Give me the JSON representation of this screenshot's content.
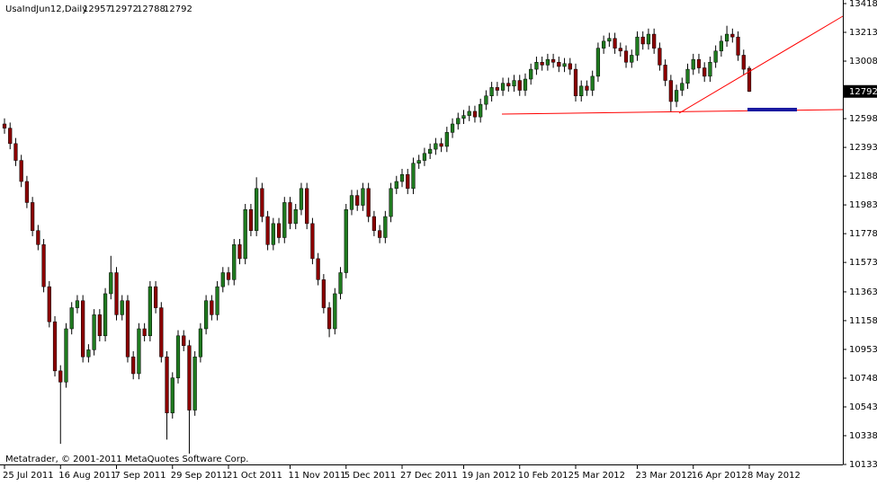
{
  "chart_data": {
    "type": "candlestick",
    "symbol": "UsaIndJun12,Daily",
    "watermark": "Metatrader, © 2001-2011 MetaQuotes Software Corp.",
    "up_color": "#1f7a1f",
    "down_color": "#8b0000",
    "wick_color": "#000000",
    "open": [
      12560,
      12530,
      12420,
      12300,
      12150,
      12000,
      11800,
      11700,
      11400,
      11150,
      10800,
      10720,
      11100,
      11250,
      11300,
      10900,
      10950,
      11200,
      11050,
      11350,
      11500,
      11200,
      11300,
      10900,
      10780,
      11100,
      11050,
      11400,
      11250,
      10900,
      10500,
      10750,
      11050,
      10980,
      10520,
      10900,
      11100,
      11300,
      11200,
      11400,
      11500,
      11450,
      11700,
      11600,
      11950,
      11800,
      12100,
      11900,
      11700,
      11850,
      11750,
      12000,
      11850,
      11950,
      12100,
      11850,
      11600,
      11450,
      11250,
      11100,
      11350,
      11500,
      11950,
      12050,
      11980,
      12100,
      11900,
      11800,
      11750,
      11900,
      12100,
      12150,
      12200,
      12100,
      12280,
      12300,
      12350,
      12380,
      12420,
      12400,
      12500,
      12560,
      12600,
      12620,
      12650,
      12610,
      12700,
      12760,
      12820,
      12800,
      12850,
      12830,
      12870,
      12800,
      12880,
      12950,
      13000,
      12980,
      13020,
      13000,
      12970,
      12990,
      12950,
      12760,
      12830,
      12800,
      12900,
      13100,
      13150,
      13170,
      13100,
      13080,
      13000,
      13050,
      13180,
      13130,
      13200,
      13100,
      12980,
      12870,
      12720,
      12800,
      12850,
      12950,
      13020,
      12960,
      12900,
      13000,
      13080,
      13150,
      13200,
      13180,
      13050,
      12957
    ],
    "high": [
      12600,
      12570,
      12460,
      12340,
      12190,
      12040,
      11840,
      11740,
      11440,
      11190,
      10840,
      11140,
      11290,
      11340,
      11340,
      10990,
      11240,
      11240,
      11390,
      11620,
      11540,
      11340,
      11340,
      10940,
      11140,
      11140,
      11440,
      11440,
      11290,
      10940,
      10790,
      11090,
      11090,
      11020,
      10940,
      11140,
      11340,
      11340,
      11440,
      11540,
      11540,
      11740,
      11740,
      11990,
      11990,
      12180,
      12140,
      11940,
      11890,
      11890,
      12040,
      12040,
      11990,
      12140,
      12140,
      11890,
      11640,
      11490,
      11290,
      11390,
      11540,
      11990,
      12090,
      12090,
      12140,
      12140,
      11940,
      11840,
      11940,
      12140,
      12190,
      12240,
      12240,
      12320,
      12340,
      12390,
      12420,
      12460,
      12460,
      12540,
      12600,
      12640,
      12660,
      12690,
      12690,
      12740,
      12800,
      12860,
      12860,
      12890,
      12890,
      12910,
      12910,
      12920,
      12990,
      13040,
      13040,
      13060,
      13060,
      13040,
      13030,
      13030,
      12990,
      12870,
      12870,
      12940,
      13140,
      13190,
      13210,
      13210,
      13140,
      13120,
      13090,
      13220,
      13220,
      13240,
      13240,
      13140,
      13020,
      12910,
      12840,
      12890,
      12990,
      13060,
      13060,
      13000,
      13040,
      13120,
      13190,
      13260,
      13240,
      13220,
      13090,
      12972
    ],
    "low": [
      12490,
      12380,
      12260,
      12110,
      11960,
      11760,
      11660,
      11360,
      11110,
      10760,
      10280,
      10680,
      11060,
      11210,
      10860,
      10860,
      10910,
      11010,
      11010,
      11310,
      11160,
      11160,
      10860,
      10740,
      10740,
      11010,
      11010,
      11210,
      10860,
      10310,
      10460,
      10710,
      10940,
      10210,
      10480,
      10860,
      11060,
      11160,
      11160,
      11360,
      11410,
      11410,
      11560,
      11560,
      11760,
      11760,
      11860,
      11660,
      11660,
      11710,
      11710,
      11810,
      11810,
      11910,
      11810,
      11560,
      11410,
      11210,
      11040,
      11060,
      11310,
      11460,
      11910,
      11940,
      11940,
      11860,
      11760,
      11710,
      11710,
      11860,
      12060,
      12110,
      12060,
      12060,
      12240,
      12260,
      12310,
      12340,
      12360,
      12360,
      12460,
      12520,
      12560,
      12580,
      12570,
      12570,
      12660,
      12720,
      12760,
      12760,
      12790,
      12790,
      12760,
      12760,
      12840,
      12910,
      12940,
      12940,
      12960,
      12930,
      12930,
      12910,
      12720,
      12720,
      12760,
      12760,
      12860,
      13060,
      13110,
      13060,
      13040,
      12960,
      12960,
      13010,
      13090,
      13090,
      13060,
      12940,
      12830,
      12650,
      12680,
      12760,
      12810,
      12910,
      12920,
      12860,
      12860,
      12960,
      13040,
      13110,
      13140,
      13010,
      12910,
      12788
    ],
    "close": [
      12530,
      12420,
      12300,
      12150,
      12000,
      11800,
      11700,
      11400,
      11150,
      10800,
      10720,
      11100,
      11250,
      11300,
      10900,
      10950,
      11200,
      11050,
      11350,
      11500,
      11200,
      11300,
      10900,
      10780,
      11100,
      11050,
      11400,
      11250,
      10900,
      10500,
      10750,
      11050,
      10980,
      10520,
      10900,
      11100,
      11300,
      11200,
      11400,
      11500,
      11450,
      11700,
      11600,
      11950,
      11800,
      12100,
      11900,
      11700,
      11850,
      11750,
      12000,
      11850,
      11950,
      12100,
      11850,
      11600,
      11450,
      11250,
      11100,
      11350,
      11500,
      11950,
      12050,
      11980,
      12100,
      11900,
      11800,
      11750,
      11900,
      12100,
      12150,
      12200,
      12100,
      12280,
      12300,
      12350,
      12380,
      12420,
      12400,
      12500,
      12560,
      12600,
      12620,
      12650,
      12610,
      12700,
      12760,
      12820,
      12800,
      12850,
      12830,
      12870,
      12800,
      12880,
      12950,
      13000,
      12980,
      13020,
      13000,
      12970,
      12990,
      12950,
      12760,
      12830,
      12800,
      12900,
      13100,
      13150,
      13170,
      13100,
      13080,
      13000,
      13050,
      13180,
      13130,
      13200,
      13100,
      12980,
      12870,
      12720,
      12800,
      12850,
      12950,
      13020,
      12960,
      12900,
      13000,
      13080,
      13150,
      13200,
      13180,
      13050,
      12950,
      12792
    ],
    "ylim": [
      10133,
      13418
    ],
    "yticks": [
      13418,
      13213,
      13008,
      12598,
      12393,
      12188,
      11983,
      11778,
      11573,
      11363,
      11158,
      10953,
      10748,
      10543,
      10338,
      10133
    ],
    "xticks": [
      {
        "value": 0,
        "label": "25 Jul 2011"
      },
      {
        "value": 10,
        "label": "16 Aug 2011"
      },
      {
        "value": 20,
        "label": "7 Sep 2011"
      },
      {
        "value": 30,
        "label": "29 Sep 2011"
      },
      {
        "value": 40,
        "label": "21 Oct 2011"
      },
      {
        "value": 51,
        "label": "11 Nov 2011"
      },
      {
        "value": 61,
        "label": "5 Dec 2011"
      },
      {
        "value": 71,
        "label": "27 Dec 2011"
      },
      {
        "value": 82,
        "label": "19 Jan 2012"
      },
      {
        "value": 92,
        "label": "10 Feb 2012"
      },
      {
        "value": 102,
        "label": "5 Mar 2012"
      },
      {
        "value": 113,
        "label": "23 Mar 2012"
      },
      {
        "value": 123,
        "label": "16 Apr 2012"
      },
      {
        "value": 133,
        "label": "8 May 2012"
      }
    ]
  }
}
